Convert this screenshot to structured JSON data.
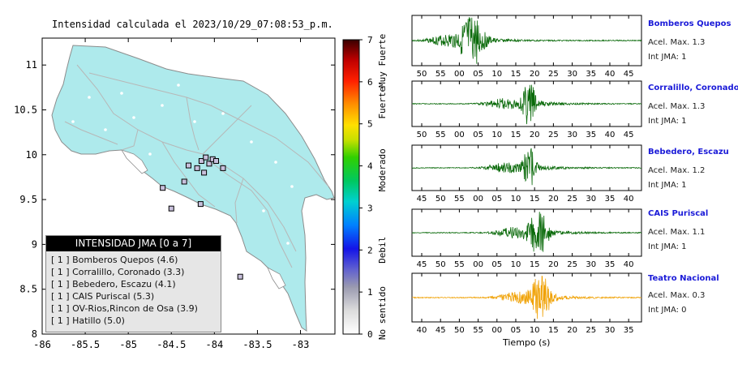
{
  "map": {
    "title": "Intensidad calculada el 2023/10/29_07:08:53_p.m.",
    "x_ticks": [
      "-86",
      "-85.5",
      "-85",
      "-84.5",
      "-84",
      "-83.5",
      "-83"
    ],
    "y_ticks": [
      "11",
      "10.5",
      "10",
      "9.5",
      "9",
      "8.5",
      "8"
    ],
    "colors": {
      "land": "#aeeaec",
      "sea": "#ffffff",
      "roads": "#b7b7b7",
      "border": "#8c8c8c"
    }
  },
  "colorbar": {
    "ticks": [
      "0",
      "1",
      "2",
      "3",
      "4",
      "5",
      "6",
      "7"
    ],
    "category_labels": [
      "No sentido",
      "Debil",
      "Moderado",
      "Fuerte",
      "Muy Fuerte"
    ]
  },
  "legend": {
    "title": "INTENSIDAD JMA [0 a 7]",
    "rows": [
      "[ 1 ]  Bomberos Quepos (4.6)",
      "[ 1 ]  Corralillo, Coronado (3.3)",
      "[ 1 ]  Bebedero, Escazu (4.1)",
      "[ 1 ]  CAIS Puriscal (5.3)",
      "[ 1 ]  OV-Rios,Rincon de Osa (3.9)",
      "[ 1 ]  Hatillo (5.0)"
    ]
  },
  "stations": [
    {
      "name": "Bomberos Quepos",
      "accel": "Acel. Max. 1.3",
      "jma": "Int JMA: 1",
      "ticks": [
        "50",
        "55",
        "00",
        "05",
        "10",
        "15",
        "20",
        "25",
        "30",
        "35",
        "40",
        "45"
      ],
      "color": "#0a6a0a"
    },
    {
      "name": "Corralillo, Coronado",
      "accel": "Acel. Max. 1.3",
      "jma": "Int JMA: 1",
      "ticks": [
        "50",
        "55",
        "00",
        "05",
        "10",
        "15",
        "20",
        "25",
        "30",
        "35",
        "40",
        "45"
      ],
      "color": "#0a6a0a"
    },
    {
      "name": "Bebedero, Escazu",
      "accel": "Acel. Max. 1.2",
      "jma": "Int JMA: 1",
      "ticks": [
        "45",
        "50",
        "55",
        "00",
        "05",
        "10",
        "15",
        "20",
        "25",
        "30",
        "35",
        "40"
      ],
      "color": "#0a6a0a"
    },
    {
      "name": "CAIS Puriscal",
      "accel": "Acel. Max. 1.1",
      "jma": "Int JMA: 1",
      "ticks": [
        "45",
        "50",
        "55",
        "00",
        "05",
        "10",
        "15",
        "20",
        "25",
        "30",
        "35",
        "40"
      ],
      "color": "#0a6a0a"
    },
    {
      "name": "Teatro Nacional",
      "accel": "Acel. Max. 0.3",
      "jma": "Int JMA: 0",
      "ticks": [
        "40",
        "45",
        "50",
        "55",
        "00",
        "05",
        "10",
        "15",
        "20",
        "25",
        "30",
        "35"
      ],
      "color": "#f0a000"
    }
  ],
  "xlabel": "Tiempo (s)",
  "chart_data": [
    {
      "type": "scatter",
      "title": "Intensidad calculada el 2023/10/29_07:08:53_p.m.",
      "xlim": [
        -86,
        -82.6
      ],
      "ylim": [
        8,
        11.3
      ],
      "series": [
        {
          "values": [
            [
              -84.15,
              9.93
            ],
            [
              -84.1,
              9.97
            ],
            [
              -84.06,
              9.9
            ],
            [
              -84.02,
              9.95
            ],
            [
              -83.98,
              9.93
            ],
            [
              -84.2,
              9.85
            ],
            [
              -84.3,
              9.88
            ],
            [
              -84.12,
              9.8
            ],
            [
              -83.9,
              9.85
            ],
            [
              -84.5,
              9.4
            ],
            [
              -84.16,
              9.45
            ],
            [
              -83.7,
              8.64
            ],
            [
              -84.6,
              9.63
            ],
            [
              -84.35,
              9.7
            ]
          ]
        }
      ]
    },
    {
      "type": "line",
      "xlabel": "Tiempo (s)",
      "series": [
        {
          "name": "Bomberos Quepos",
          "peak": 1.3
        },
        {
          "name": "Corralillo, Coronado",
          "peak": 1.3
        },
        {
          "name": "Bebedero, Escazu",
          "peak": 1.2
        },
        {
          "name": "CAIS Puriscal",
          "peak": 1.1
        },
        {
          "name": "Teatro Nacional",
          "peak": 0.3
        }
      ]
    }
  ]
}
